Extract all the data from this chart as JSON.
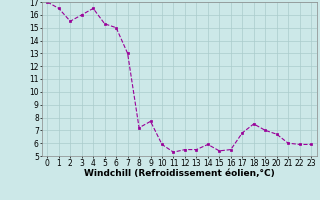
{
  "x": [
    0,
    1,
    2,
    3,
    4,
    5,
    6,
    7,
    8,
    9,
    10,
    11,
    12,
    13,
    14,
    15,
    16,
    17,
    18,
    19,
    20,
    21,
    22,
    23
  ],
  "y": [
    17.0,
    16.5,
    15.5,
    16.0,
    16.5,
    15.3,
    15.0,
    13.0,
    7.2,
    7.7,
    5.9,
    5.3,
    5.5,
    5.5,
    5.9,
    5.4,
    5.5,
    6.8,
    7.5,
    7.0,
    6.7,
    6.0,
    5.9,
    5.9
  ],
  "line_color": "#990099",
  "marker": "s",
  "marker_size": 1.8,
  "bg_color": "#cce8e8",
  "grid_color": "#aacccc",
  "xlabel": "Windchill (Refroidissement éolien,°C)",
  "xlabel_fontsize": 6.5,
  "ylim": [
    5,
    17
  ],
  "xlim": [
    -0.5,
    23.5
  ],
  "yticks": [
    5,
    6,
    7,
    8,
    9,
    10,
    11,
    12,
    13,
    14,
    15,
    16,
    17
  ],
  "xticks": [
    0,
    1,
    2,
    3,
    4,
    5,
    6,
    7,
    8,
    9,
    10,
    11,
    12,
    13,
    14,
    15,
    16,
    17,
    18,
    19,
    20,
    21,
    22,
    23
  ],
  "tick_fontsize": 5.5,
  "spine_color": "#888888"
}
